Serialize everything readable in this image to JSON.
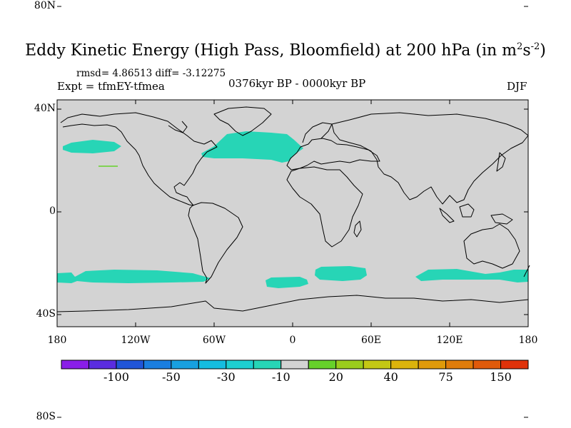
{
  "title": {
    "main": "Eddy Kinetic Energy (High Pass, Bloomfield) at 200 hPa (in m",
    "sup1": "2",
    "mid": "s",
    "sup2": "-2",
    "close": ")"
  },
  "stats_text": "rmsd= 4.86513 diff= -3.12275",
  "experiment": "Expt = tfmEY-tfmea",
  "period": "0376kyr BP - 0000kyr BP",
  "season": "DJF",
  "map": {
    "background_color": "#d3d3d3",
    "anomaly_color": "#27d5b6",
    "coast_color": "#000000",
    "y_ticks": [
      {
        "lat": 80,
        "label": "80N"
      },
      {
        "lat": 40,
        "label": "40N"
      },
      {
        "lat": 0,
        "label": "0"
      },
      {
        "lat": -40,
        "label": "40S"
      },
      {
        "lat": -80,
        "label": "80S"
      }
    ],
    "x_ticks": [
      {
        "lon": -180,
        "label": "180"
      },
      {
        "lon": -120,
        "label": "120W"
      },
      {
        "lon": -60,
        "label": "60W"
      },
      {
        "lon": 0,
        "label": "0"
      },
      {
        "lon": 60,
        "label": "60E"
      },
      {
        "lon": 120,
        "label": "120E"
      },
      {
        "lon": 180,
        "label": "180"
      }
    ]
  },
  "colorbar": {
    "colors": [
      "#8a1ee8",
      "#5a2de0",
      "#2055d8",
      "#1a7ee0",
      "#18a0e0",
      "#15bde0",
      "#1dcfd0",
      "#27d5b6",
      "#d3d3d3",
      "#66d12a",
      "#9acc1c",
      "#c4c814",
      "#dcb40c",
      "#e09a0a",
      "#e07c0a",
      "#e05a0a",
      "#e0320a"
    ],
    "labels": [
      {
        "after_box": 2,
        "text": "-100"
      },
      {
        "after_box": 4,
        "text": "-50"
      },
      {
        "after_box": 6,
        "text": "-30"
      },
      {
        "after_box": 8,
        "text": "-10"
      },
      {
        "after_box": 10,
        "text": "20"
      },
      {
        "after_box": 12,
        "text": "40"
      },
      {
        "after_box": 14,
        "text": "75"
      },
      {
        "after_box": 16,
        "text": "150"
      }
    ]
  }
}
